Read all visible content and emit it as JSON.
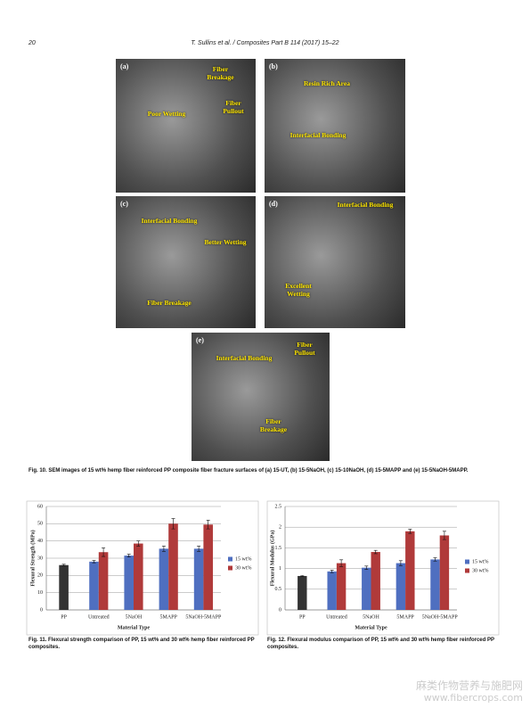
{
  "header": {
    "page_number": "20",
    "running_title": "T. Sullins et al. / Composites Part B 114 (2017) 15–22"
  },
  "figure10": {
    "panels": [
      {
        "label": "(a)",
        "annotations": [
          "Fiber Breakage",
          "Fiber Pullout",
          "Poor Wetting"
        ]
      },
      {
        "label": "(b)",
        "annotations": [
          "Resin Rich Area",
          "Interfacial Bonding"
        ]
      },
      {
        "label": "(c)",
        "annotations": [
          "Interfacial Bonding",
          "Better Wetting",
          "Fiber Breakage"
        ]
      },
      {
        "label": "(d)",
        "annotations": [
          "Interfacial Bonding",
          "Excellent Wetting"
        ]
      },
      {
        "label": "(e)",
        "annotations": [
          "Fiber Pullout",
          "Interfacial Bonding",
          "Fiber Breakage"
        ]
      }
    ],
    "caption": "Fig. 10. SEM images of 15 wt% hemp fiber reinforced PP composite fiber fracture surfaces of (a) 15-UT, (b) 15-5NaOH, (c) 15-10NaOH, (d) 15-5MAPP and (e) 15-5NaOH-5MAPP."
  },
  "chart_data": [
    {
      "type": "bar",
      "ylabel": "Flexural Strength (MPa)",
      "xlabel": "Material Type",
      "categories": [
        "PP",
        "Untreated",
        "5NaOH",
        "5MAPP",
        "5NaOH-5MAPP"
      ],
      "series": [
        {
          "color": "#333333",
          "values": [
            26,
            null,
            null,
            null,
            null
          ],
          "errors": [
            0.5,
            null,
            null,
            null,
            null
          ]
        },
        {
          "name": "15 wt%",
          "color": "#4f6fc0",
          "values": [
            null,
            28,
            31.5,
            35.5,
            35.5
          ],
          "errors": [
            null,
            0.7,
            0.8,
            1.5,
            1.5
          ]
        },
        {
          "name": "30 wt%",
          "color": "#b03a3a",
          "values": [
            null,
            33.5,
            38.5,
            50,
            49.5
          ],
          "errors": [
            null,
            2.5,
            1.5,
            3,
            2.5
          ]
        }
      ],
      "ylim": [
        0,
        60
      ],
      "yticks": [
        0,
        10,
        20,
        30,
        40,
        50,
        60
      ],
      "grid": true,
      "legend": "right",
      "caption": "Fig. 11. Flexural strength comparison of PP, 15 wt% and 30 wt% hemp fiber reinforced PP composites."
    },
    {
      "type": "bar",
      "ylabel": "Flexural Modulus (GPa)",
      "xlabel": "Material Type",
      "categories": [
        "PP",
        "Untreated",
        "5NaOH",
        "5MAPP",
        "5NaOH-5MAPP"
      ],
      "series": [
        {
          "color": "#333333",
          "values": [
            0.82,
            null,
            null,
            null,
            null
          ],
          "errors": [
            0.01,
            null,
            null,
            null,
            null
          ]
        },
        {
          "name": "15 wt%",
          "color": "#4f6fc0",
          "values": [
            null,
            0.93,
            1.02,
            1.13,
            1.22
          ],
          "errors": [
            null,
            0.03,
            0.04,
            0.06,
            0.04
          ]
        },
        {
          "name": "30 wt%",
          "color": "#b03a3a",
          "values": [
            null,
            1.13,
            1.4,
            1.9,
            1.8
          ],
          "errors": [
            null,
            0.08,
            0.04,
            0.05,
            0.1
          ]
        }
      ],
      "ylim": [
        0,
        2.5
      ],
      "yticks": [
        0,
        0.5,
        1,
        1.5,
        2,
        2.5
      ],
      "grid": true,
      "legend": "right",
      "caption": "Fig. 12. Flexural modulus comparison of PP, 15 wt% and 30 wt% hemp fiber reinforced PP composites."
    }
  ],
  "watermark": {
    "chinese": "麻类作物营养与施肥网",
    "url": "www.fibercrops.com"
  }
}
